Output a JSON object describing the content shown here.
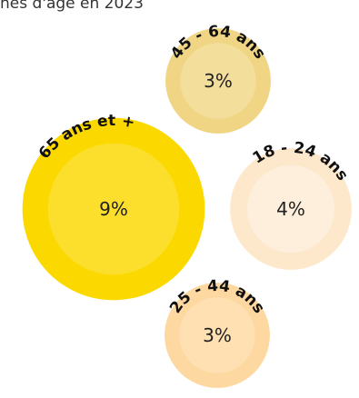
{
  "chart_data": {
    "type": "bubble",
    "title": "nes d'âge en 2023",
    "series": [
      {
        "name": "45 - 64 ans",
        "value": 3,
        "value_label": "3%",
        "color": "#EFD584",
        "inner_color": "#F3DE9C"
      },
      {
        "name": "65 ans et +",
        "value": 9,
        "value_label": "9%",
        "color": "#FBD900",
        "inner_color": "#FCDF2C"
      },
      {
        "name": "18 - 24 ans",
        "value": 4,
        "value_label": "4%",
        "color": "#FDE8CB",
        "inner_color": "#FDEFDB"
      },
      {
        "name": "25 - 44 ans",
        "value": 3,
        "value_label": "3%",
        "color": "#FDD8A0",
        "inner_color": "#FEE0B2"
      }
    ]
  }
}
